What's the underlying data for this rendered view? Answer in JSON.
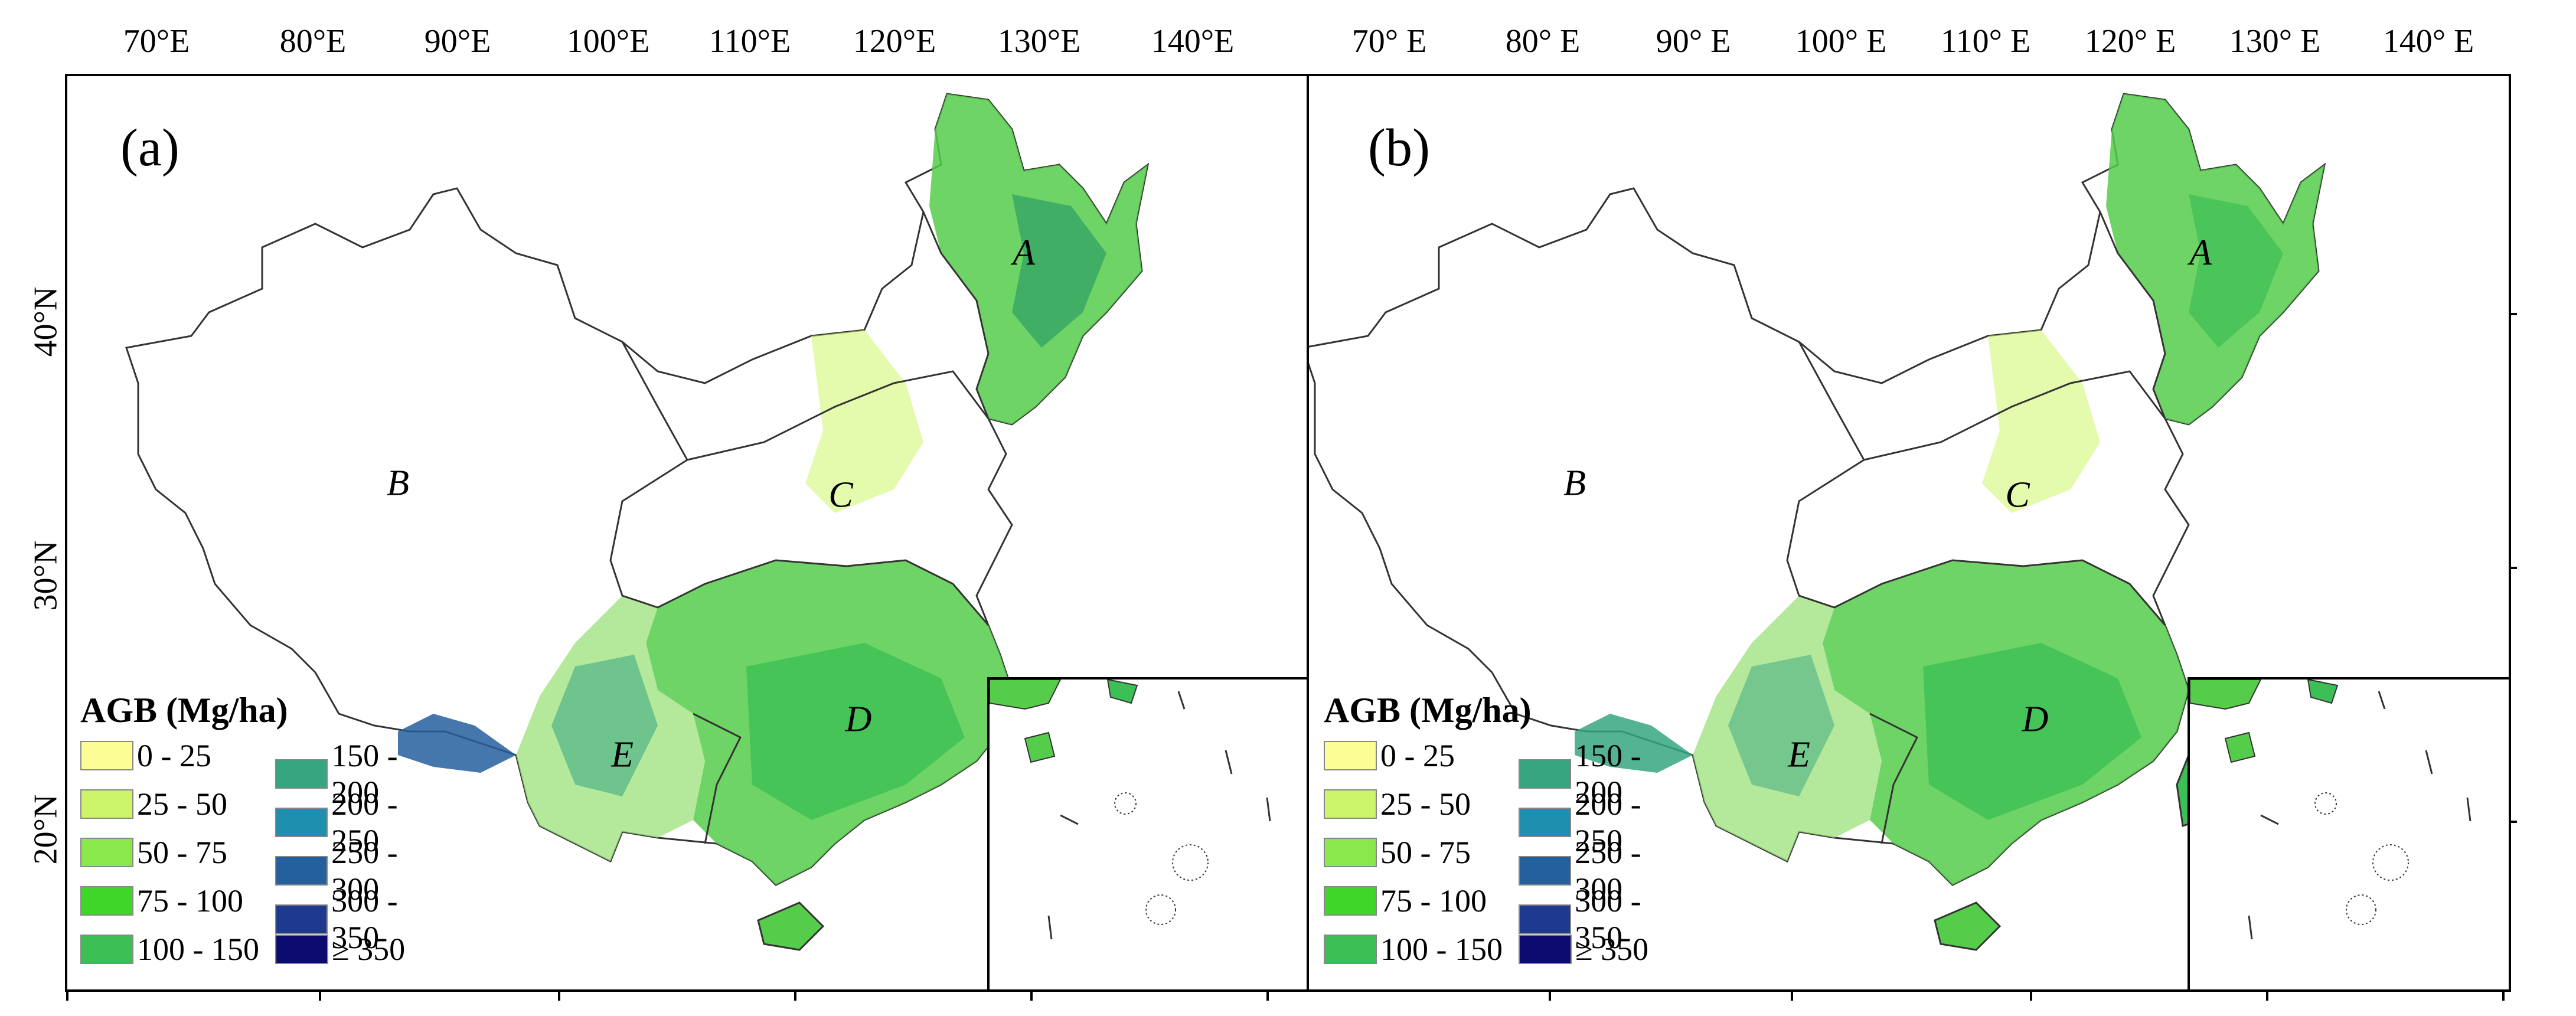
{
  "panels": [
    {
      "letter": "(a)",
      "lon_labels": [
        "70°E",
        "80°E",
        "90°E",
        "100°E",
        "110°E",
        "120°E",
        "130°E",
        "140°E"
      ],
      "lat_labels": [
        "40°N",
        "30°N",
        "20°N"
      ],
      "regions": [
        "A",
        "B",
        "C",
        "D",
        "E"
      ]
    },
    {
      "letter": "(b)",
      "lon_labels": [
        "70° E",
        "80° E",
        "90° E",
        "100° E",
        "110° E",
        "120° E",
        "130° E",
        "140° E"
      ],
      "lat_labels": [],
      "regions": [
        "A",
        "B",
        "C",
        "D",
        "E"
      ]
    }
  ],
  "legend": {
    "title": "AGB (Mg/ha)",
    "items": [
      {
        "label": "0 - 25",
        "color": "#fdfd96"
      },
      {
        "label": "25 - 50",
        "color": "#cdf56a"
      },
      {
        "label": "50 - 75",
        "color": "#8be84a"
      },
      {
        "label": "75 - 100",
        "color": "#3fd629"
      },
      {
        "label": "100 - 150",
        "color": "#3cbf55"
      },
      {
        "label": "150 - 200",
        "color": "#35a67f"
      },
      {
        "label": "200 - 250",
        "color": "#1f8fb0"
      },
      {
        "label": "250 - 300",
        "color": "#245f9e"
      },
      {
        "label": "300 - 350",
        "color": "#1d3a8f"
      },
      {
        "label": "≥ 350",
        "color": "#0c0c70"
      }
    ]
  },
  "colors": {
    "background": "#ffffff",
    "boundary": "#333333",
    "forest_light": "#b8ef6a",
    "forest_mid": "#55cc4a",
    "forest_dark": "#2e9e66"
  }
}
